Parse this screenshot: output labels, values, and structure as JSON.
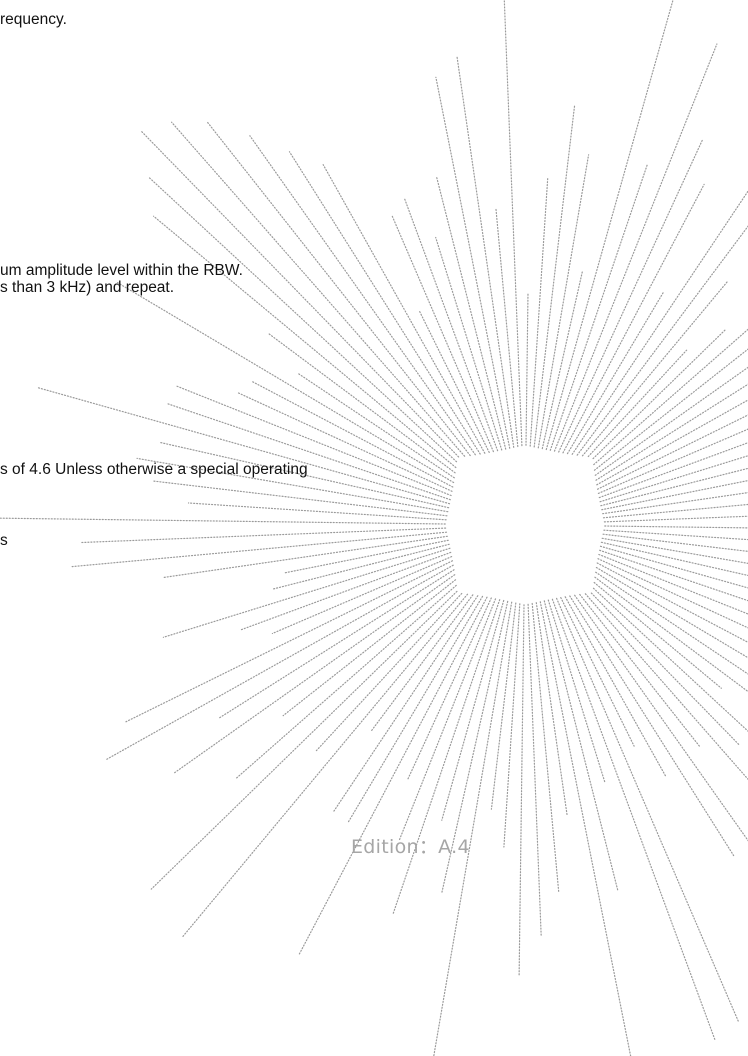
{
  "document": {
    "lines": [
      "requency.",
      "um amplitude level within the RBW.",
      "s than 3 kHz) and repeat.",
      "s of 4.6 Unless otherwise a special operating",
      "s"
    ],
    "edition": "Edition：A.4"
  },
  "colors": {
    "text": "#111111",
    "edition_text": "#a6a6a6",
    "watermark": "#9a9a9a"
  }
}
